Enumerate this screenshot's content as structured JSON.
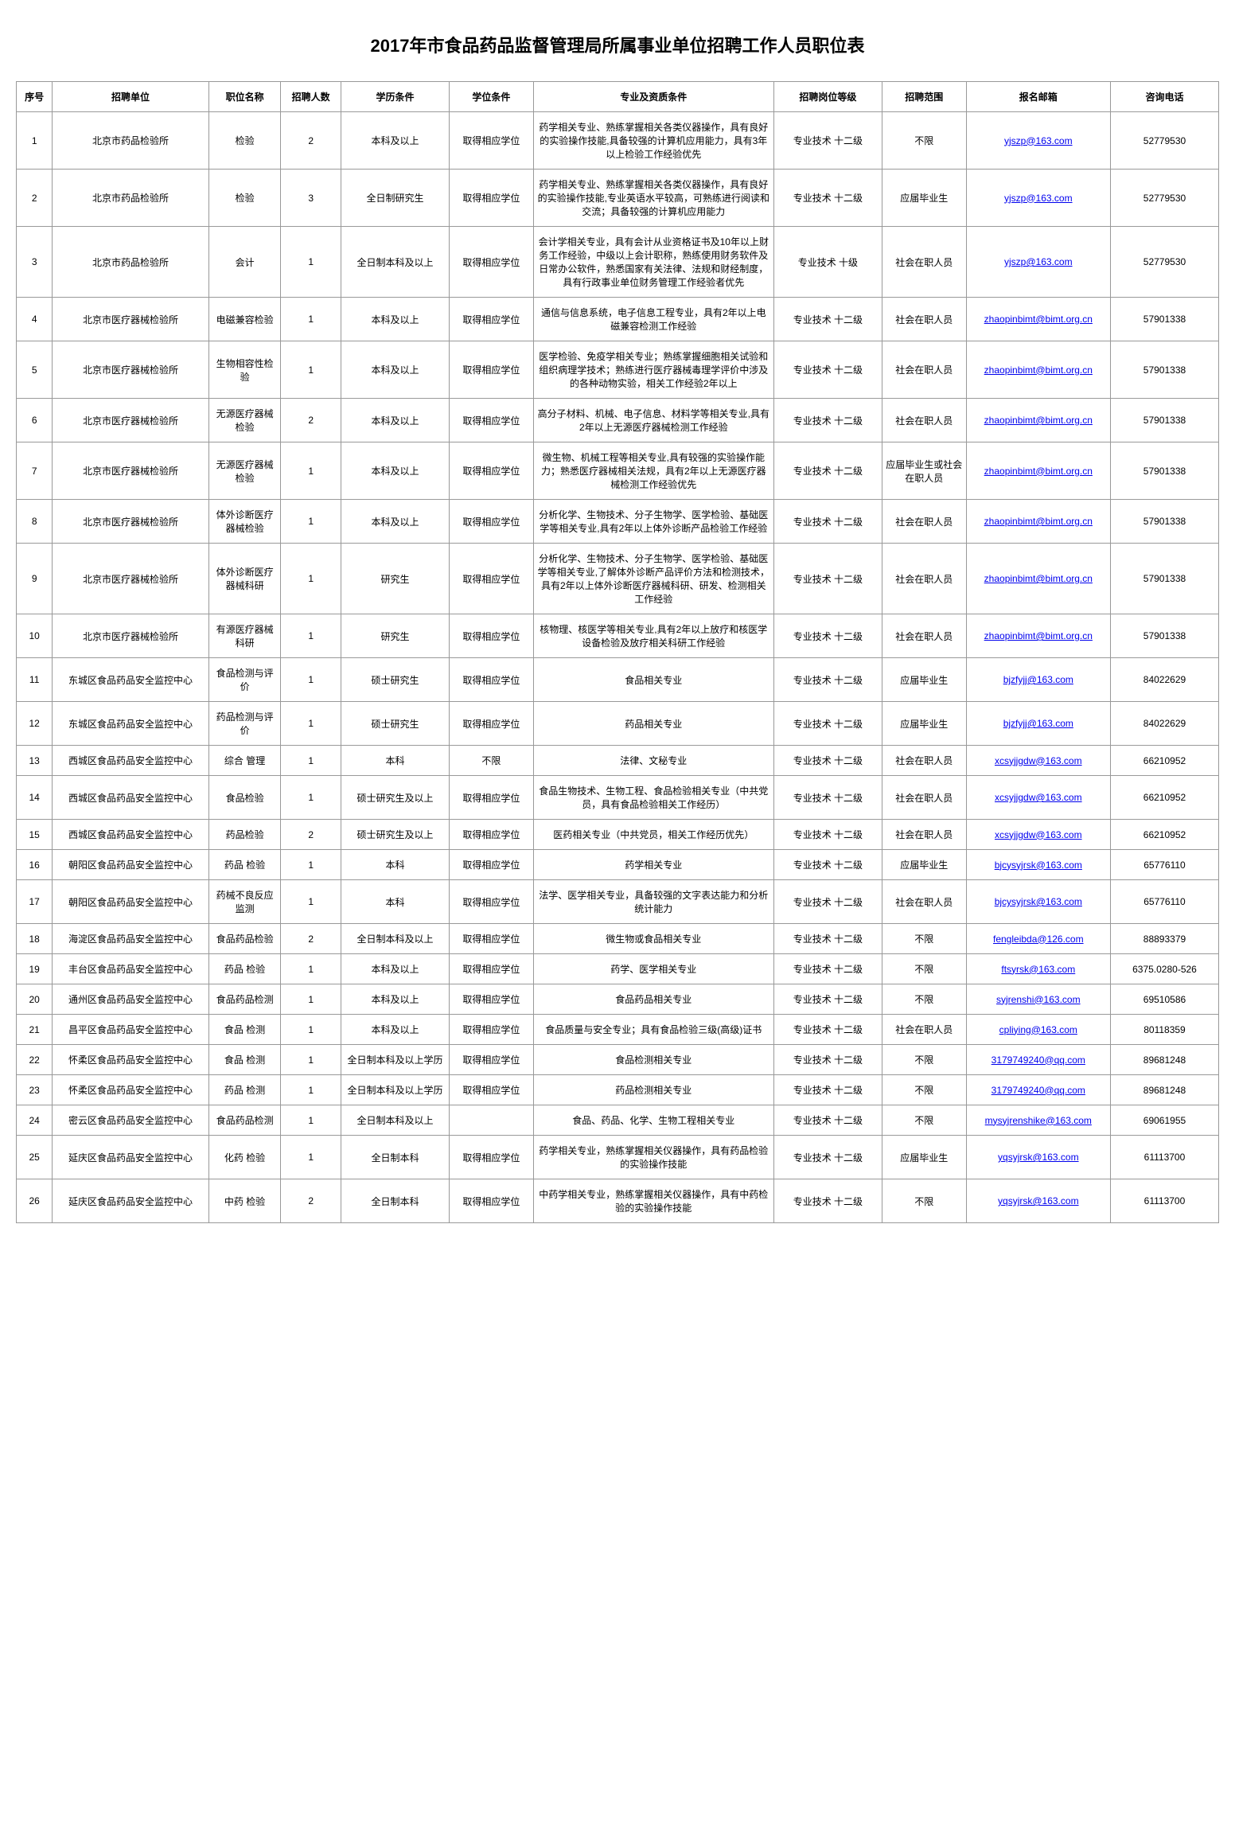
{
  "title": "2017年市食品药品监督管理局所属事业单位招聘工作人员职位表",
  "headers": [
    "序号",
    "招聘单位",
    "职位名称",
    "招聘人数",
    "学历条件",
    "学位条件",
    "专业及资质条件",
    "招聘岗位等级",
    "招聘范围",
    "报名邮箱",
    "咨询电话"
  ],
  "rows": [
    [
      "1",
      "北京市药品检验所",
      "检验",
      "2",
      "本科及以上",
      "取得相应学位",
      "药学相关专业、熟练掌握相关各类仪器操作，具有良好的实验操作技能,具备较强的计算机应用能力，具有3年以上检验工作经验优先",
      "专业技术  十二级",
      "不限",
      "yjszp@163.com",
      "52779530"
    ],
    [
      "2",
      "北京市药品检验所",
      "检验",
      "3",
      "全日制研究生",
      "取得相应学位",
      "药学相关专业、熟练掌握相关各类仪器操作，具有良好的实验操作技能,专业英语水平较高，可熟练进行阅读和交流；具备较强的计算机应用能力",
      "专业技术  十二级",
      "应届毕业生",
      "yjszp@163.com",
      "52779530"
    ],
    [
      "3",
      "北京市药品检验所",
      "会计",
      "1",
      "全日制本科及以上",
      "取得相应学位",
      "会计学相关专业，具有会计从业资格证书及10年以上财务工作经验，中级以上会计职称，熟练使用财务软件及日常办公软件，熟悉国家有关法律、法规和财经制度，具有行政事业单位财务管理工作经验者优先",
      "专业技术  十级",
      "社会在职人员",
      "yjszp@163.com",
      "52779530"
    ],
    [
      "4",
      "北京市医疗器械检验所",
      "电磁兼容检验",
      "1",
      "本科及以上",
      "取得相应学位",
      "通信与信息系统，电子信息工程专业，具有2年以上电磁兼容检测工作经验",
      "专业技术  十二级",
      "社会在职人员",
      "zhaopinbimt@bimt.org.cn",
      "57901338"
    ],
    [
      "5",
      "北京市医疗器械检验所",
      "生物相容性检验",
      "1",
      "本科及以上",
      "取得相应学位",
      "医学检验、免疫学相关专业；熟练掌握细胞相关试验和组织病理学技术；熟练进行医疗器械毒理学评价中涉及的各种动物实验，相关工作经验2年以上",
      "专业技术  十二级",
      "社会在职人员",
      "zhaopinbimt@bimt.org.cn",
      "57901338"
    ],
    [
      "6",
      "北京市医疗器械检验所",
      "无源医疗器械检验",
      "2",
      "本科及以上",
      "取得相应学位",
      "高分子材料、机械、电子信息、材料学等相关专业,具有2年以上无源医疗器械检测工作经验",
      "专业技术  十二级",
      "社会在职人员",
      "zhaopinbimt@bimt.org.cn",
      "57901338"
    ],
    [
      "7",
      "北京市医疗器械检验所",
      "无源医疗器械检验",
      "1",
      "本科及以上",
      "取得相应学位",
      "微生物、机械工程等相关专业,具有较强的实验操作能力；熟悉医疗器械相关法规，具有2年以上无源医疗器械检测工作经验优先",
      "专业技术  十二级",
      "应届毕业生或社会在职人员",
      "zhaopinbimt@bimt.org.cn",
      "57901338"
    ],
    [
      "8",
      "北京市医疗器械检验所",
      "体外诊断医疗器械检验",
      "1",
      "本科及以上",
      "取得相应学位",
      "分析化学、生物技术、分子生物学、医学检验、基础医学等相关专业,具有2年以上体外诊断产品检验工作经验",
      "专业技术  十二级",
      "社会在职人员",
      "zhaopinbimt@bimt.org.cn",
      "57901338"
    ],
    [
      "9",
      "北京市医疗器械检验所",
      "体外诊断医疗器械科研",
      "1",
      "研究生",
      "取得相应学位",
      "分析化学、生物技术、分子生物学、医学检验、基础医学等相关专业,了解体外诊断产品评价方法和检测技术，具有2年以上体外诊断医疗器械科研、研发、检测相关工作经验",
      "专业技术  十二级",
      "社会在职人员",
      "zhaopinbimt@bimt.org.cn",
      "57901338"
    ],
    [
      "10",
      "北京市医疗器械检验所",
      "有源医疗器械科研",
      "1",
      "研究生",
      "取得相应学位",
      "核物理、核医学等相关专业,具有2年以上放疗和核医学设备检验及放疗相关科研工作经验",
      "专业技术  十二级",
      "社会在职人员",
      "zhaopinbimt@bimt.org.cn",
      "57901338"
    ],
    [
      "11",
      "东城区食品药品安全监控中心",
      "食品检测与评价",
      "1",
      "硕士研究生",
      "取得相应学位",
      "食品相关专业",
      "专业技术  十二级",
      "应届毕业生",
      "bjzfyjj@163.com",
      "84022629"
    ],
    [
      "12",
      "东城区食品药品安全监控中心",
      "药品检测与评价",
      "1",
      "硕士研究生",
      "取得相应学位",
      "药品相关专业",
      "专业技术  十二级",
      "应届毕业生",
      "bjzfyjj@163.com",
      "84022629"
    ],
    [
      "13",
      "西城区食品药品安全监控中心",
      "综合  管理",
      "1",
      "本科",
      "不限",
      "法律、文秘专业",
      "专业技术  十二级",
      "社会在职人员",
      "xcsyjjgdw@163.com",
      "66210952"
    ],
    [
      "14",
      "西城区食品药品安全监控中心",
      "食品检验",
      "1",
      "硕士研究生及以上",
      "取得相应学位",
      "食品生物技术、生物工程、食品检验相关专业（中共党员，具有食品检验相关工作经历）",
      "专业技术  十二级",
      "社会在职人员",
      "xcsyjjgdw@163.com",
      "66210952"
    ],
    [
      "15",
      "西城区食品药品安全监控中心",
      "药品检验",
      "2",
      "硕士研究生及以上",
      "取得相应学位",
      "医药相关专业（中共党员，相关工作经历优先）",
      "专业技术  十二级",
      "社会在职人员",
      "xcsyjjgdw@163.com",
      "66210952"
    ],
    [
      "16",
      "朝阳区食品药品安全监控中心",
      "药品  检验",
      "1",
      "本科",
      "取得相应学位",
      "药学相关专业",
      "专业技术  十二级",
      "应届毕业生",
      "bjcysyjrsk@163.com",
      "65776110"
    ],
    [
      "17",
      "朝阳区食品药品安全监控中心",
      "药械不良反应监测",
      "1",
      "本科",
      "取得相应学位",
      "法学、医学相关专业，具备较强的文字表达能力和分析统计能力",
      "专业技术  十二级",
      "社会在职人员",
      "bjcysyjrsk@163.com",
      "65776110"
    ],
    [
      "18",
      "海淀区食品药品安全监控中心",
      "食品药品检验",
      "2",
      "全日制本科及以上",
      "取得相应学位",
      "微生物或食品相关专业",
      "专业技术  十二级",
      "不限",
      "fengleibda@126.com",
      "88893379"
    ],
    [
      "19",
      "丰台区食品药品安全监控中心",
      "药品  检验",
      "1",
      "本科及以上",
      "取得相应学位",
      "药学、医学相关专业",
      "专业技术  十二级",
      "不限",
      "ftsyrsk@163.com",
      "6375.0280-526"
    ],
    [
      "20",
      "通州区食品药品安全监控中心",
      "食品药品检测",
      "1",
      "本科及以上",
      "取得相应学位",
      "食品药品相关专业",
      "专业技术  十二级",
      "不限",
      "syjrenshi@163.com",
      "69510586"
    ],
    [
      "21",
      "昌平区食品药品安全监控中心",
      "食品  检测",
      "1",
      "本科及以上",
      "取得相应学位",
      "食品质量与安全专业；具有食品检验三级(高级)证书",
      "专业技术  十二级",
      "社会在职人员",
      "cpliying@163.com",
      "80118359"
    ],
    [
      "22",
      "怀柔区食品药品安全监控中心",
      "食品  检测",
      "1",
      "全日制本科及以上学历",
      "取得相应学位",
      "食品检测相关专业",
      "专业技术  十二级",
      "不限",
      "3179749240@qq.com",
      "89681248"
    ],
    [
      "23",
      "怀柔区食品药品安全监控中心",
      "药品  检测",
      "1",
      "全日制本科及以上学历",
      "取得相应学位",
      "药品检测相关专业",
      "专业技术  十二级",
      "不限",
      "3179749240@qq.com",
      "89681248"
    ],
    [
      "24",
      "密云区食品药品安全监控中心",
      "食品药品检测",
      "1",
      "全日制本科及以上",
      "",
      "食品、药品、化学、生物工程相关专业",
      "专业技术  十二级",
      "不限",
      "mysyjrenshike@163.com",
      "69061955"
    ],
    [
      "25",
      "延庆区食品药品安全监控中心",
      "化药  检验",
      "1",
      "全日制本科",
      "取得相应学位",
      "药学相关专业，熟练掌握相关仪器操作，具有药品检验的实验操作技能",
      "专业技术  十二级",
      "应届毕业生",
      "yqsyjrsk@163.com",
      "61113700"
    ],
    [
      "26",
      "延庆区食品药品安全监控中心",
      "中药  检验",
      "2",
      "全日制本科",
      "取得相应学位",
      "中药学相关专业，熟练掌握相关仪器操作，具有中药检验的实验操作技能",
      "专业技术  十二级",
      "不限",
      "yqsyjrsk@163.com",
      "61113700"
    ]
  ]
}
